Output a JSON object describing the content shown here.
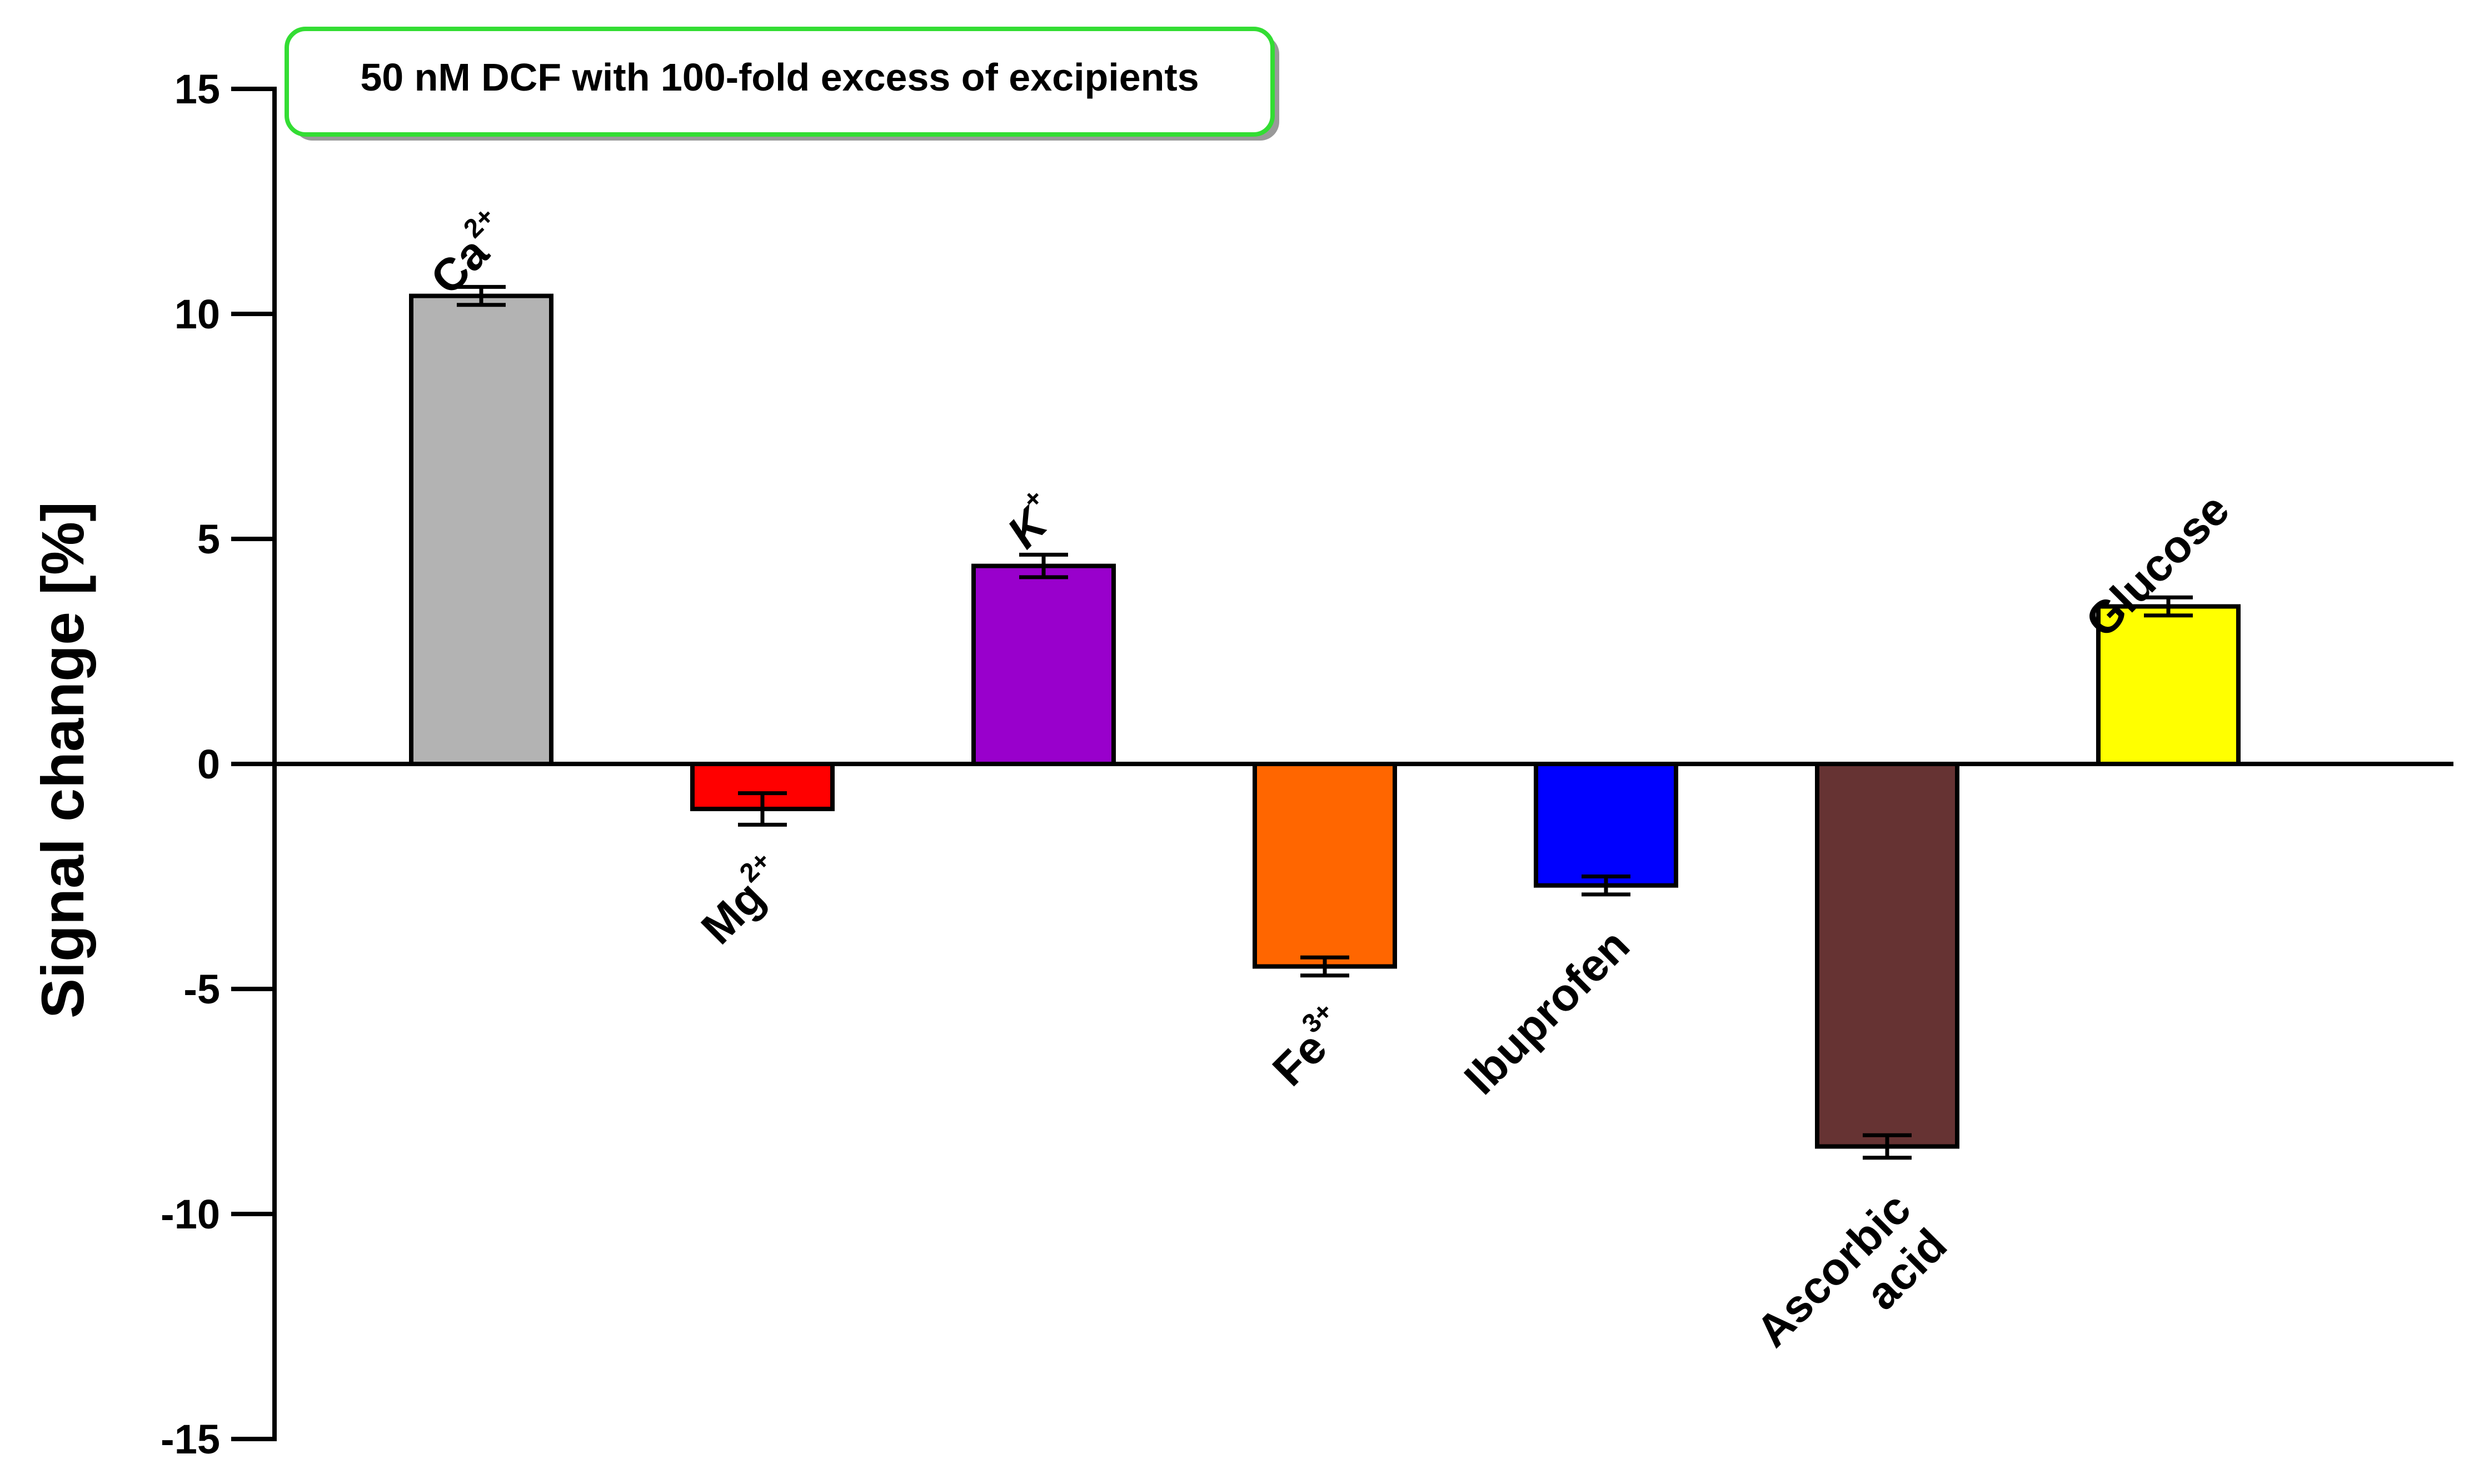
{
  "chart_data": {
    "type": "bar",
    "title": "",
    "annotation": "50 nM DCF with 100-fold excess of excipients",
    "xlabel": "",
    "ylabel": "Signal change [%]",
    "ylim": [
      -15,
      15
    ],
    "yticks": [
      15,
      10,
      5,
      0,
      -5,
      -10,
      -15
    ],
    "ytick_labels": [
      "15",
      "10",
      "5",
      "0",
      "-5",
      "-10",
      "-15"
    ],
    "grid": false,
    "legend": "none",
    "categories": [
      {
        "base": "Ca",
        "sup": "2+",
        "lines": [
          "Ca"
        ]
      },
      {
        "base": "Mg",
        "sup": "2+",
        "lines": [
          "Mg"
        ]
      },
      {
        "base": "K",
        "sup": "+",
        "lines": [
          "K"
        ]
      },
      {
        "base": "Fe",
        "sup": "3+",
        "lines": [
          "Fe"
        ]
      },
      {
        "base": "Ibuprofen",
        "sup": "",
        "lines": [
          "Ibuprofen"
        ]
      },
      {
        "base": "Ascorbic acid",
        "sup": "",
        "lines": [
          "Ascorbic",
          "acid"
        ]
      },
      {
        "base": "Glucose",
        "sup": "",
        "lines": [
          "Glucose"
        ]
      }
    ],
    "values": [
      10.4,
      -1.0,
      4.4,
      -4.5,
      -2.7,
      -8.5,
      3.5
    ],
    "errors": [
      0.2,
      0.35,
      0.25,
      0.2,
      0.2,
      0.25,
      0.2
    ],
    "colors": [
      "#b3b3b3",
      "#ff0000",
      "#9900cc",
      "#ff6600",
      "#0000ff",
      "#663333",
      "#ffff00"
    ]
  }
}
